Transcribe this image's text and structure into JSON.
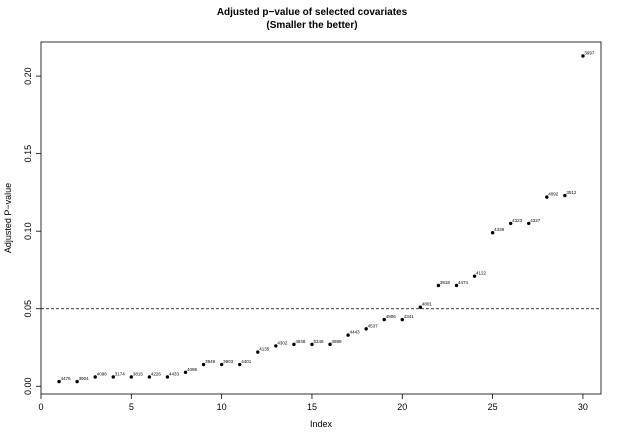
{
  "chart_data": {
    "type": "scatter",
    "title": "Adjusted p−value of selected covariates",
    "subtitle": "(Smaller the better)",
    "xlabel": "Index",
    "ylabel": "Adjusted P−value",
    "xlim": [
      0,
      31
    ],
    "ylim": [
      -0.005,
      0.222
    ],
    "xticks": [
      0,
      5,
      10,
      15,
      20,
      25,
      30
    ],
    "yticks": [
      0.0,
      0.05,
      0.1,
      0.15,
      0.2
    ],
    "ytick_labels": [
      "0.00",
      "0.05",
      "0.10",
      "0.15",
      "0.20"
    ],
    "hline": 0.05,
    "points": [
      {
        "x": 1,
        "y": 0.003,
        "label": "4476"
      },
      {
        "x": 2,
        "y": 0.003,
        "label": "3904"
      },
      {
        "x": 3,
        "y": 0.006,
        "label": "4098"
      },
      {
        "x": 4,
        "y": 0.006,
        "label": "3174"
      },
      {
        "x": 5,
        "y": 0.006,
        "label": "3815"
      },
      {
        "x": 6,
        "y": 0.006,
        "label": "4226"
      },
      {
        "x": 7,
        "y": 0.006,
        "label": "4433"
      },
      {
        "x": 8,
        "y": 0.009,
        "label": "4099"
      },
      {
        "x": 9,
        "y": 0.014,
        "label": "3949"
      },
      {
        "x": 10,
        "y": 0.014,
        "label": "3903"
      },
      {
        "x": 11,
        "y": 0.014,
        "label": "4401"
      },
      {
        "x": 12,
        "y": 0.022,
        "label": "4135"
      },
      {
        "x": 13,
        "y": 0.026,
        "label": "4302"
      },
      {
        "x": 14,
        "y": 0.027,
        "label": "4848"
      },
      {
        "x": 15,
        "y": 0.027,
        "label": "5349"
      },
      {
        "x": 16,
        "y": 0.027,
        "label": "3989"
      },
      {
        "x": 17,
        "y": 0.033,
        "label": "4443"
      },
      {
        "x": 18,
        "y": 0.037,
        "label": "4537"
      },
      {
        "x": 19,
        "y": 0.043,
        "label": "4806"
      },
      {
        "x": 20,
        "y": 0.043,
        "label": "4341"
      },
      {
        "x": 21,
        "y": 0.051,
        "label": "4801"
      },
      {
        "x": 22,
        "y": 0.065,
        "label": "3918"
      },
      {
        "x": 23,
        "y": 0.065,
        "label": "4474"
      },
      {
        "x": 24,
        "y": 0.071,
        "label": "4122"
      },
      {
        "x": 25,
        "y": 0.099,
        "label": "4339"
      },
      {
        "x": 26,
        "y": 0.105,
        "label": "4323"
      },
      {
        "x": 27,
        "y": 0.105,
        "label": "4327"
      },
      {
        "x": 28,
        "y": 0.122,
        "label": "4092"
      },
      {
        "x": 29,
        "y": 0.123,
        "label": "3512"
      },
      {
        "x": 30,
        "y": 0.213,
        "label": "3997"
      }
    ],
    "grid": false,
    "legend": "none"
  }
}
